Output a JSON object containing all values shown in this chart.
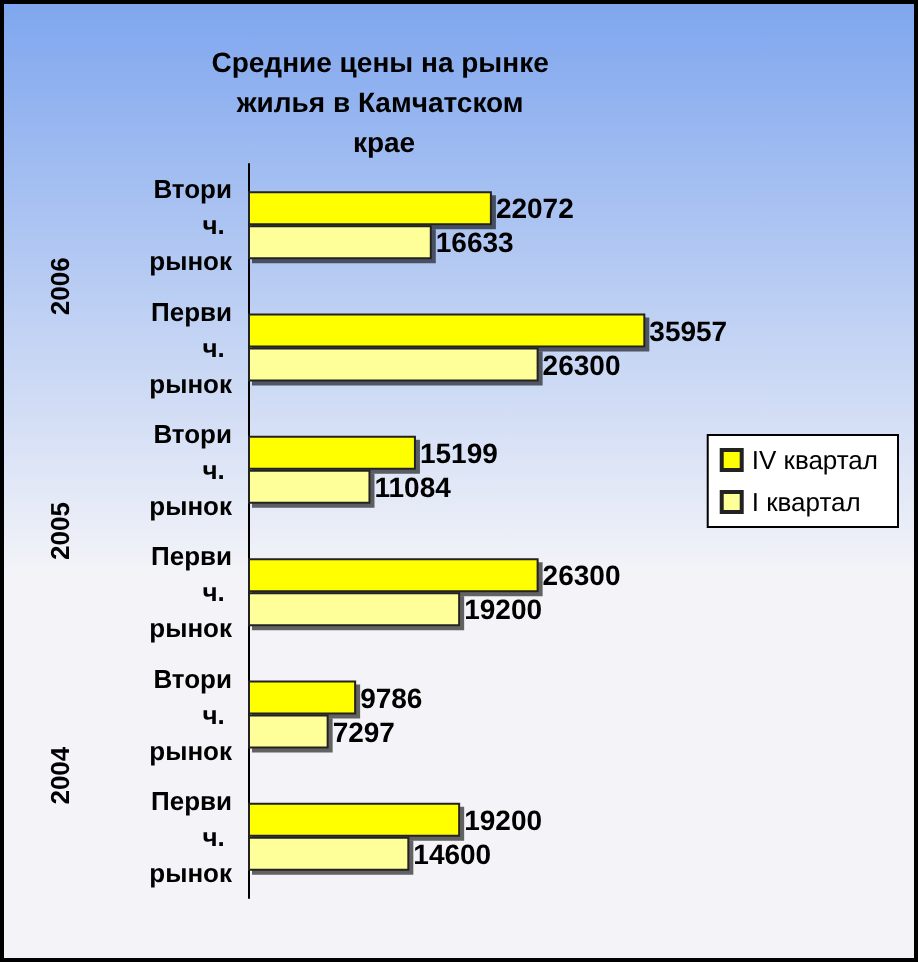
{
  "chart_data": {
    "type": "bar",
    "orientation": "horizontal",
    "title": "Средние цены на рынке жилья в Камчатском крае",
    "categories": [
      "Вторич. рынок",
      "Первич. рынок",
      "Вторич. рынок",
      "Первич. рынок",
      "Вторич. рынок",
      "Первич. рынок"
    ],
    "series": [
      {
        "name": "IV квартал",
        "color": "#ffff00",
        "values": [
          22072,
          35957,
          15199,
          26300,
          9786,
          19200
        ]
      },
      {
        "name": "I квартал",
        "color": "#ffff99",
        "values": [
          16633,
          26300,
          11084,
          19200,
          7297,
          14600
        ]
      }
    ],
    "annotations": [
      "2006",
      "2005",
      "2004"
    ],
    "data_labels": true,
    "legend": "right"
  }
}
